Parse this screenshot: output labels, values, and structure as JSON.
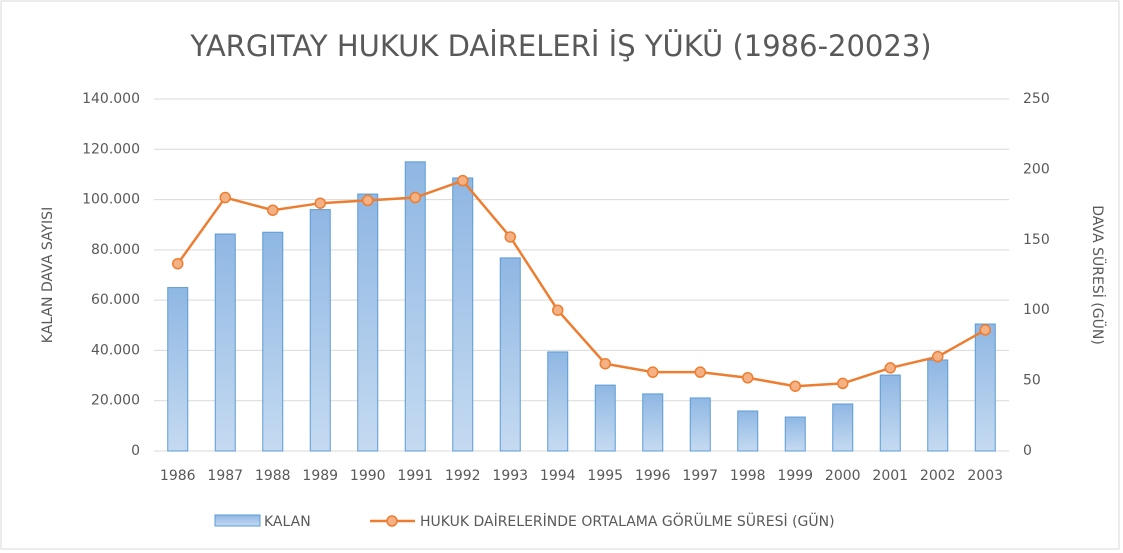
{
  "chart_data": {
    "type": "bar",
    "title": "YARGITAY HUKUK DAİRELERİ İŞ YÜKÜ (1986-20023)",
    "y_label": "KALAN DAVA SAYISI",
    "y2_label": "DAVA SÜRESİ (GÜN)",
    "categories": [
      "1986",
      "1987",
      "1988",
      "1989",
      "1990",
      "1991",
      "1992",
      "1993",
      "1994",
      "1995",
      "1996",
      "1997",
      "1998",
      "1999",
      "2000",
      "2001",
      "2002",
      "2003"
    ],
    "series": [
      {
        "name": "KALAN",
        "type": "bar",
        "color": "#9dc3e6",
        "values": [
          65000,
          86300,
          87000,
          96000,
          102200,
          115000,
          108600,
          76800,
          39400,
          26200,
          22700,
          21100,
          15900,
          13500,
          18700,
          30200,
          36200,
          50500
        ]
      },
      {
        "name": "HUKUK DAİRELERİNDE ORTALAMA GÖRÜLME SÜRESİ (GÜN)",
        "type": "line",
        "axis": "y2",
        "color": "#ed7d31",
        "values": [
          133,
          180,
          171,
          176,
          178,
          180,
          192,
          152,
          100,
          62,
          56,
          56,
          52,
          46,
          48,
          59,
          67,
          86
        ]
      }
    ],
    "ylim": [
      0,
      140000
    ],
    "yticks": [
      0,
      {
        "value": 20000,
        "label": "20.000"
      },
      {
        "value": 40000,
        "label": "40.000"
      },
      {
        "value": 60000,
        "label": "60.000"
      },
      {
        "value": 80000,
        "label": "80.000"
      },
      {
        "value": 100000,
        "label": "100.000"
      },
      {
        "value": 120000,
        "label": "120.000"
      },
      {
        "value": 140000,
        "label": "140.000"
      }
    ],
    "y2lim": [
      0,
      250
    ],
    "y2ticks": [
      0,
      50,
      100,
      150,
      200,
      250
    ],
    "grid": true,
    "legend": "bottom"
  }
}
